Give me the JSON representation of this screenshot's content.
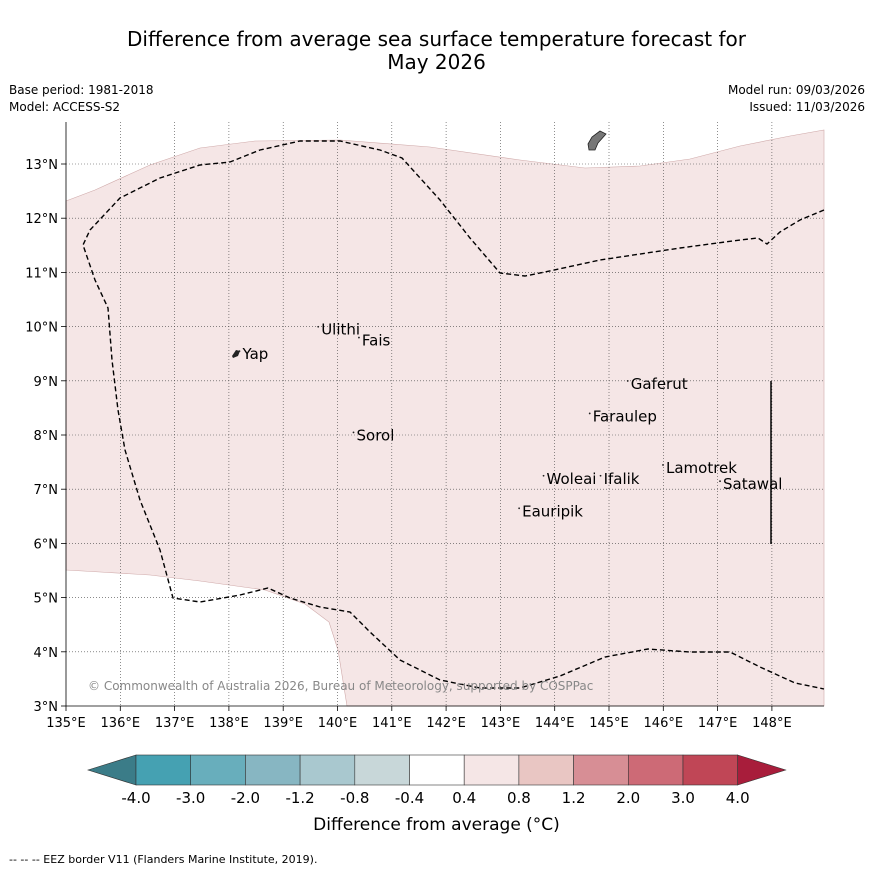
{
  "title": {
    "line1": "Difference from average sea surface temperature forecast for",
    "line2": "May 2026"
  },
  "meta": {
    "base_period": "Base period: 1981-2018",
    "model": "Model: ACCESS-S2",
    "model_run": "Model run: 09/03/2026",
    "issued": "Issued: 11/03/2026"
  },
  "map": {
    "lat_labels": [
      "3°N",
      "4°N",
      "5°N",
      "6°N",
      "7°N",
      "8°N",
      "9°N",
      "10°N",
      "11°N",
      "12°N",
      "13°N"
    ],
    "lon_labels": [
      "135°E",
      "136°E",
      "137°E",
      "138°E",
      "139°E",
      "140°E",
      "141°E",
      "142°E",
      "143°E",
      "144°E",
      "145°E",
      "146°E",
      "147°E",
      "148°E"
    ],
    "places": [
      {
        "name": "Yap",
        "lon": 138.25,
        "lat": 9.4
      },
      {
        "name": "Ulithi",
        "lon": 139.7,
        "lat": 9.85
      },
      {
        "name": "Fais",
        "lon": 140.45,
        "lat": 9.65
      },
      {
        "name": "Sorol",
        "lon": 140.35,
        "lat": 7.9
      },
      {
        "name": "Gaferut",
        "lon": 145.4,
        "lat": 8.85
      },
      {
        "name": "Faraulep",
        "lon": 144.7,
        "lat": 8.25
      },
      {
        "name": "Lamotrek",
        "lon": 146.05,
        "lat": 7.3
      },
      {
        "name": "Satawal",
        "lon": 147.1,
        "lat": 7.0
      },
      {
        "name": "Woleai",
        "lon": 143.85,
        "lat": 7.1
      },
      {
        "name": "Ifalik",
        "lon": 144.9,
        "lat": 7.1
      },
      {
        "name": "Eauripik",
        "lon": 143.4,
        "lat": 6.5
      }
    ],
    "copyright": "© Commonwealth of Australia 2026, Bureau of Meteorology, supported by COSPPac"
  },
  "colorbar": {
    "ticks": [
      "-4.0",
      "-3.0",
      "-2.0",
      "-1.2",
      "-0.8",
      "-0.4",
      "0.4",
      "0.8",
      "1.2",
      "2.0",
      "3.0",
      "4.0"
    ],
    "colors": [
      "#3b7c88",
      "#45a1b2",
      "#68aebc",
      "#87b6c2",
      "#a9c8cf",
      "#c8d7d9",
      "#ffffff",
      "#f5e6e6",
      "#e9c6c3",
      "#d78e95",
      "#cd6a76",
      "#c04656",
      "#a81d3b"
    ],
    "label": "Difference from average (°C)",
    "fill_color": "#f5e6e6"
  },
  "footer": "--  --  -- EEZ border V11 (Flanders Marine Institute, 2019)."
}
